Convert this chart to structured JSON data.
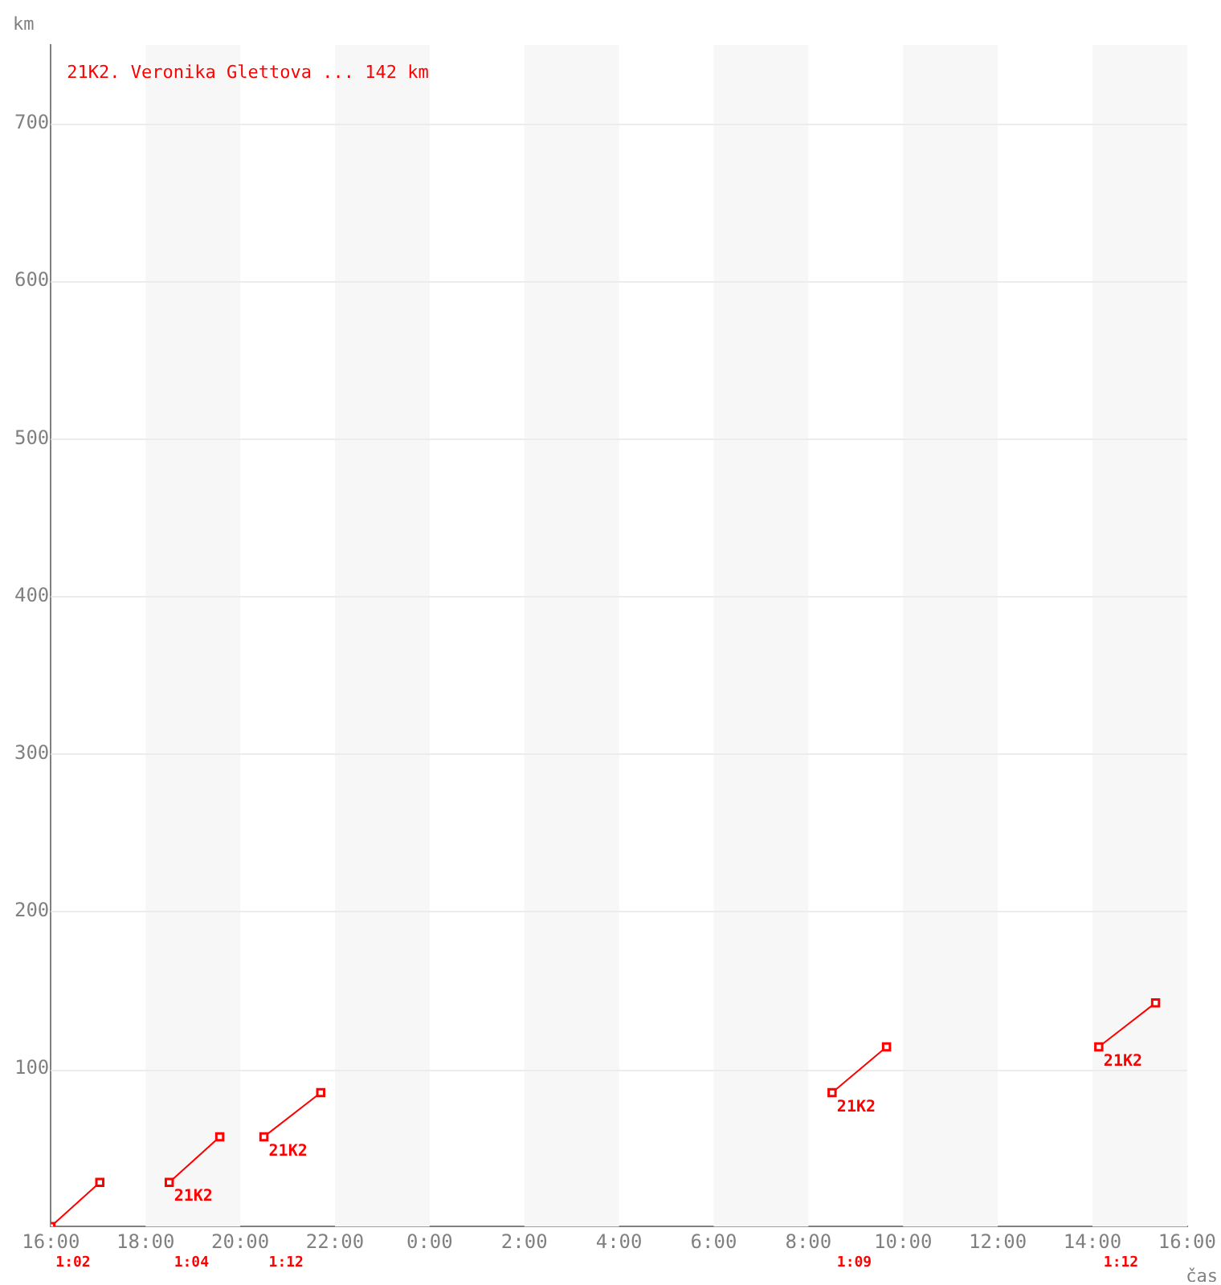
{
  "chart_data": {
    "type": "line",
    "xlabel": "čas",
    "ylabel": "km",
    "x": [
      "2000-01-01T16:00",
      "2000-01-01T17:02",
      "2000-01-01T17:30",
      "2000-01-01T18:30",
      "2000-01-01T19:34",
      "2000-01-01T20:00",
      "2000-01-01T20:30",
      "2000-01-01T21:42",
      "2000-01-02T01:00",
      "2000-01-02T08:30",
      "2000-01-02T09:39",
      "2000-01-02T12:00",
      "2000-01-02T14:08",
      "2000-01-02T15:20"
    ],
    "series": [
      {
        "name": "21K2. Veronika Glettova ... 142 km",
        "color": "#ff0000",
        "values": [
          0,
          28,
          null,
          28,
          57,
          null,
          57,
          85,
          null,
          85,
          114,
          null,
          114,
          142
        ]
      }
    ],
    "xlim": [
      "2000-01-01T16:00",
      "2000-01-02T16:00"
    ],
    "xticks": [
      {
        "value": "2000-01-01T16:00",
        "label": "16:00"
      },
      {
        "value": "2000-01-01T18:00",
        "label": "18:00"
      },
      {
        "value": "2000-01-01T20:00",
        "label": "20:00"
      },
      {
        "value": "2000-01-01T22:00",
        "label": "22:00"
      },
      {
        "value": "2000-01-02T00:00",
        "label": "0:00"
      },
      {
        "value": "2000-01-02T02:00",
        "label": "2:00"
      },
      {
        "value": "2000-01-02T04:00",
        "label": "4:00"
      },
      {
        "value": "2000-01-02T06:00",
        "label": "6:00"
      },
      {
        "value": "2000-01-02T08:00",
        "label": "8:00"
      },
      {
        "value": "2000-01-02T10:00",
        "label": "10:00"
      },
      {
        "value": "2000-01-02T12:00",
        "label": "12:00"
      },
      {
        "value": "2000-01-02T14:00",
        "label": "14:00"
      },
      {
        "value": "2000-01-02T16:00",
        "label": "16:00"
      }
    ],
    "ylim": [
      0,
      750
    ],
    "yticks": [
      100,
      200,
      300,
      400,
      500,
      600,
      700
    ],
    "grid": "y",
    "legend": "top left",
    "marker": "square",
    "line_style": "solid",
    "bands": [
      {
        "axis": "x",
        "from": "2000-01-01T18:00",
        "to": "2000-01-01T20:00",
        "color": "#f7f7f7"
      },
      {
        "axis": "x",
        "from": "2000-01-01T22:00",
        "to": "2000-01-02T00:00",
        "color": "#f7f7f7"
      },
      {
        "axis": "x",
        "from": "2000-01-02T02:00",
        "to": "2000-01-02T04:00",
        "color": "#f7f7f7"
      },
      {
        "axis": "x",
        "from": "2000-01-02T06:00",
        "to": "2000-01-02T08:00",
        "color": "#f7f7f7"
      },
      {
        "axis": "x",
        "from": "2000-01-02T10:00",
        "to": "2000-01-02T12:00",
        "color": "#f7f7f7"
      },
      {
        "axis": "x",
        "from": "2000-01-02T14:00",
        "to": "2000-01-02T16:00",
        "color": "#f7f7f7"
      }
    ],
    "annotations": [
      {
        "text": "21K2",
        "x": "2000-01-01T18:30",
        "y": 28
      },
      {
        "text": "21K2",
        "x": "2000-01-01T20:30",
        "y": 57
      },
      {
        "text": "21K2",
        "x": "2000-01-02T08:30",
        "y": 85
      },
      {
        "text": "21K2",
        "x": "2000-01-02T14:08",
        "y": 114
      },
      "1:02",
      "1:04",
      "1:12",
      "1:09",
      "1:12"
    ]
  }
}
